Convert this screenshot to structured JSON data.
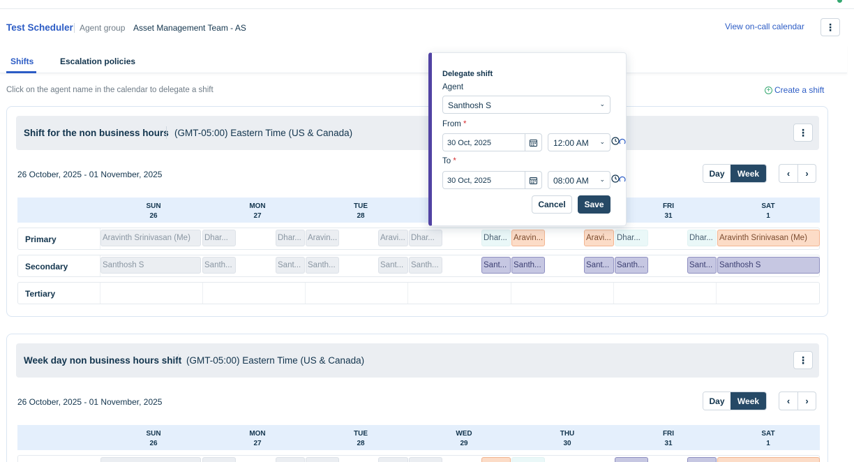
{
  "header": {
    "title": "Test Scheduler",
    "group_label": "Agent group",
    "group_value": "Asset Management Team - AS",
    "oncall_link": "View on-call calendar",
    "more": "⋮"
  },
  "tabs": [
    {
      "label": "Shifts",
      "active": true
    },
    {
      "label": "Escalation policies",
      "active": false
    }
  ],
  "hint": "Click on the agent name in the calendar to delegate a shift",
  "create_shift": "Create a shift",
  "view_toggle": {
    "day": "Day",
    "week": "Week",
    "prev": "‹",
    "next": "›"
  },
  "days": [
    {
      "name": "SUN",
      "date": "26"
    },
    {
      "name": "MON",
      "date": "27"
    },
    {
      "name": "TUE",
      "date": "28"
    },
    {
      "name": "WED",
      "date": "29"
    },
    {
      "name": "THU",
      "date": "30"
    },
    {
      "name": "FRI",
      "date": "31"
    },
    {
      "name": "SAT",
      "date": "1"
    }
  ],
  "shifts": [
    {
      "title": "Shift for the non business hours",
      "timezone": "(GMT-05:00) Eastern Time (US & Canada)",
      "range": "26 October, 2025 - 01 November, 2025",
      "rows": [
        {
          "label": "Primary",
          "chips": [
            "Aravinth Srinivasan (Me)",
            "Dhar...",
            "Dhar...",
            "Aravin...",
            "Aravi...",
            "Dhar...",
            "Dhar...",
            "Aravin...",
            "Aravi...",
            "Dhar...",
            "Dhar...",
            "Aravinth Srinivasan (Me)"
          ]
        },
        {
          "label": "Secondary",
          "chips": [
            "Santhosh S",
            "Santh...",
            "Sant...",
            "Santh...",
            "Sant...",
            "Santh...",
            "Sant...",
            "Santh...",
            "Sant...",
            "Santh...",
            "Sant...",
            "Santhosh S"
          ]
        },
        {
          "label": "Tertiary",
          "chips": []
        }
      ]
    },
    {
      "title": "Week day non business hours shift",
      "timezone": "(GMT-05:00) Eastern Time (US & Canada)",
      "range": "26 October, 2025 - 01 November, 2025"
    }
  ],
  "delegate": {
    "title": "Delegate shift",
    "agent_label": "Agent",
    "agent_value": "Santhosh S",
    "from_label": "From",
    "from_date": "30 Oct, 2025",
    "from_time": "12:00 AM",
    "to_label": "To",
    "to_date": "30 Oct, 2025",
    "to_time": "08:00 AM",
    "required_mark": "*",
    "cancel": "Cancel",
    "save": "Save"
  },
  "colors": {
    "accent": "#2c5cc5",
    "primary_button": "#264966",
    "modal_stripe": "#5142a3",
    "past_chip": "#ebeef2",
    "dharani_chip": "#eaf8f8",
    "aravinth_chip": "#fcdcc7",
    "santhosh_chip": "#c6c7e2"
  }
}
